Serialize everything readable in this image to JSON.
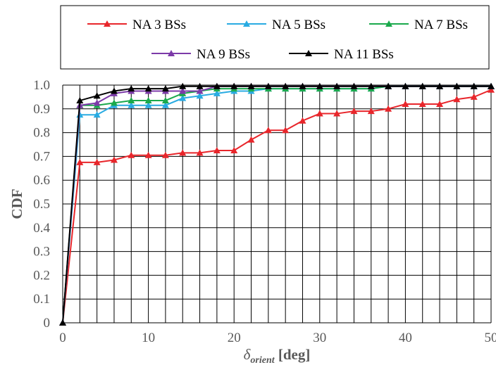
{
  "chart_data": {
    "type": "line",
    "ylabel": "CDF",
    "xlabel": {
      "symbol": "δ",
      "subscript": "orient",
      "unit": " [deg]"
    },
    "xlim": [
      0,
      50
    ],
    "ylim": [
      0,
      1
    ],
    "xticks": [
      0,
      10,
      20,
      30,
      40,
      50
    ],
    "yticks": [
      "0",
      "0.1",
      "0.2",
      "0.3",
      "0.4",
      "0.5",
      "0.6",
      "0.7",
      "0.8",
      "0.9",
      "1.0"
    ],
    "grid": true,
    "legend_position": "top",
    "series": [
      {
        "name": "NA 3 BSs",
        "color": "#e8262b",
        "x": [
          0,
          2,
          4,
          6,
          8,
          10,
          12,
          14,
          16,
          18,
          20,
          22,
          24,
          26,
          28,
          30,
          32,
          34,
          36,
          38,
          40,
          42,
          44,
          46,
          48,
          50
        ],
        "y": [
          0,
          0.675,
          0.675,
          0.685,
          0.705,
          0.705,
          0.705,
          0.715,
          0.715,
          0.725,
          0.725,
          0.77,
          0.81,
          0.81,
          0.85,
          0.88,
          0.88,
          0.89,
          0.89,
          0.9,
          0.92,
          0.92,
          0.92,
          0.94,
          0.95,
          0.98
        ]
      },
      {
        "name": "NA 5 BSs",
        "color": "#29abe2",
        "x": [
          0,
          2,
          4,
          6,
          8,
          10,
          12,
          14,
          16,
          18,
          20,
          22,
          24,
          26,
          28,
          30,
          32,
          34,
          36,
          38,
          40,
          42,
          44,
          46,
          48,
          50
        ],
        "y": [
          0,
          0.875,
          0.875,
          0.915,
          0.915,
          0.915,
          0.915,
          0.945,
          0.955,
          0.965,
          0.975,
          0.975,
          0.985,
          0.985,
          0.985,
          0.985,
          0.985,
          0.985,
          0.985,
          0.995,
          0.995,
          0.995,
          0.995,
          0.995,
          0.995,
          0.995
        ]
      },
      {
        "name": "NA 7 BSs",
        "color": "#1aa94c",
        "x": [
          0,
          2,
          4,
          6,
          8,
          10,
          12,
          14,
          16,
          18,
          20,
          22,
          24,
          26,
          28,
          30,
          32,
          34,
          36,
          38,
          40,
          42,
          44,
          46,
          48,
          50
        ],
        "y": [
          0,
          0.915,
          0.915,
          0.925,
          0.935,
          0.935,
          0.935,
          0.965,
          0.975,
          0.985,
          0.985,
          0.985,
          0.985,
          0.985,
          0.985,
          0.985,
          0.985,
          0.985,
          0.985,
          0.995,
          0.995,
          0.995,
          0.995,
          0.995,
          0.995,
          0.995
        ]
      },
      {
        "name": "NA 9 BSs",
        "color": "#7c3aa8",
        "x": [
          0,
          2,
          4,
          6,
          8,
          10,
          12,
          14,
          16,
          18,
          20,
          22,
          24,
          26,
          28,
          30,
          32,
          34,
          36,
          38,
          40,
          42,
          44,
          46,
          48,
          50
        ],
        "y": [
          0,
          0.915,
          0.925,
          0.965,
          0.975,
          0.975,
          0.975,
          0.975,
          0.975,
          0.995,
          0.995,
          0.995,
          0.995,
          0.995,
          0.995,
          0.995,
          0.995,
          0.995,
          0.995,
          0.995,
          0.995,
          0.995,
          0.995,
          0.995,
          0.995,
          0.995
        ]
      },
      {
        "name": "NA 11 BSs",
        "color": "#000000",
        "x": [
          0,
          2,
          4,
          6,
          8,
          10,
          12,
          14,
          16,
          18,
          20,
          22,
          24,
          26,
          28,
          30,
          32,
          34,
          36,
          38,
          40,
          42,
          44,
          46,
          48,
          50
        ],
        "y": [
          0,
          0.935,
          0.955,
          0.975,
          0.985,
          0.985,
          0.985,
          0.995,
          0.995,
          0.995,
          0.995,
          0.995,
          0.995,
          0.995,
          0.995,
          0.995,
          0.995,
          0.995,
          0.995,
          0.995,
          0.995,
          0.995,
          0.995,
          0.995,
          0.995,
          0.995
        ]
      }
    ]
  }
}
